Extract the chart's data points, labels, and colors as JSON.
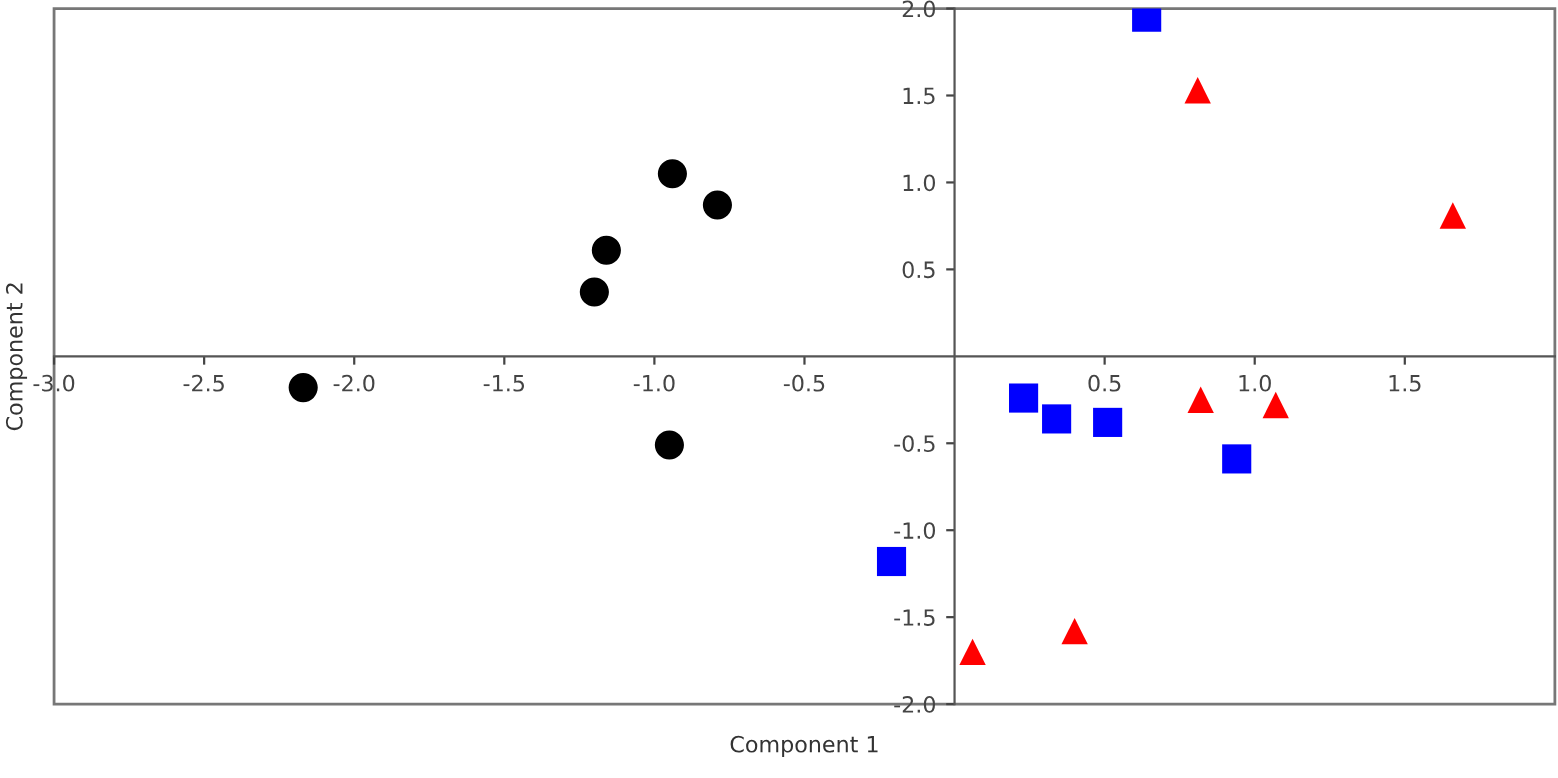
{
  "chart_data": {
    "type": "scatter",
    "xlabel": "Component 1",
    "ylabel": "Component 2",
    "xlim": [
      -3.0,
      2.0
    ],
    "ylim": [
      -2.0,
      2.0
    ],
    "xticks": [
      {
        "value": -3.0,
        "label": "-3.0"
      },
      {
        "value": -2.5,
        "label": "-2.5"
      },
      {
        "value": -2.0,
        "label": "-2.0"
      },
      {
        "value": -1.5,
        "label": "-1.5"
      },
      {
        "value": -1.0,
        "label": "-1.0"
      },
      {
        "value": -0.5,
        "label": "-0.5"
      },
      {
        "value": 0.5,
        "label": "0.5"
      },
      {
        "value": 1.0,
        "label": "1.0"
      },
      {
        "value": 1.5,
        "label": "1.5"
      }
    ],
    "yticks": [
      {
        "value": -2.0,
        "label": "-2.0"
      },
      {
        "value": -1.5,
        "label": "-1.5"
      },
      {
        "value": -1.0,
        "label": "-1.0"
      },
      {
        "value": -0.5,
        "label": "-0.5"
      },
      {
        "value": 0.5,
        "label": "0.5"
      },
      {
        "value": 1.0,
        "label": "1.0"
      },
      {
        "value": 1.5,
        "label": "1.5"
      },
      {
        "value": 2.0,
        "label": "2.0"
      }
    ],
    "grid": false,
    "series": [
      {
        "color": "#000000",
        "marker": "circle",
        "x": [
          -2.17,
          -0.94,
          -0.79,
          -1.16,
          -1.2,
          -0.95
        ],
        "values": [
          -0.18,
          1.05,
          0.87,
          0.61,
          0.37,
          -0.51
        ]
      },
      {
        "color": "#0000ff",
        "marker": "square",
        "x": [
          0.64,
          -0.21,
          0.23,
          0.34,
          0.51,
          0.94
        ],
        "values": [
          1.95,
          -1.18,
          -0.24,
          -0.36,
          -0.38,
          -0.59
        ]
      },
      {
        "color": "#ff0000",
        "marker": "triangle",
        "x": [
          0.81,
          1.66,
          0.82,
          1.07,
          0.06,
          0.4
        ],
        "values": [
          1.53,
          0.81,
          -0.25,
          -0.28,
          -1.7,
          -1.58
        ]
      }
    ]
  }
}
